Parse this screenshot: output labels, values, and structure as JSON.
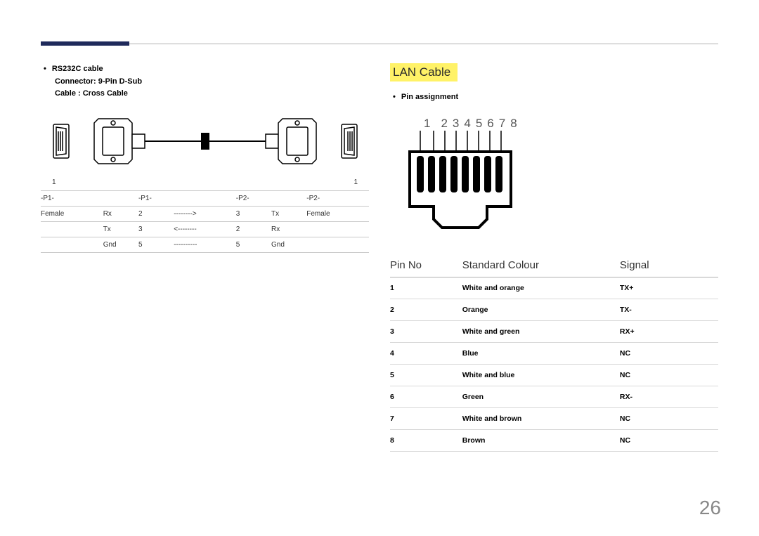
{
  "left": {
    "bullets": [
      "RS232C cable",
      "Connector: 9-Pin D-Sub",
      "Cable : Cross Cable"
    ],
    "diagram_num_left": "1",
    "diagram_num_right": "1",
    "cross_table": {
      "rows": [
        [
          "-P1-",
          "",
          "-P1-",
          "",
          "-P2-",
          "",
          "-P2-"
        ],
        [
          "Female",
          "Rx",
          "2",
          "-------->",
          "3",
          "Tx",
          "Female"
        ],
        [
          "",
          "Tx",
          "3",
          "<--------",
          "2",
          "Rx",
          ""
        ],
        [
          "",
          "Gnd",
          "5",
          "----------",
          "5",
          "Gnd",
          ""
        ]
      ]
    }
  },
  "right": {
    "heading": "LAN Cable",
    "bullet": "Pin assignment",
    "pin_numbers_first": "1",
    "pin_numbers_rest": "2345678",
    "table": {
      "headers": [
        "Pin No",
        "Standard Colour",
        "Signal"
      ],
      "rows": [
        [
          "1",
          "White and orange",
          "TX+"
        ],
        [
          "2",
          "Orange",
          "TX-"
        ],
        [
          "3",
          "White and green",
          "RX+"
        ],
        [
          "4",
          "Blue",
          "NC"
        ],
        [
          "5",
          "White and blue",
          "NC"
        ],
        [
          "6",
          "Green",
          "RX-"
        ],
        [
          "7",
          "White and brown",
          "NC"
        ],
        [
          "8",
          "Brown",
          "NC"
        ]
      ]
    }
  },
  "page_number": "26"
}
